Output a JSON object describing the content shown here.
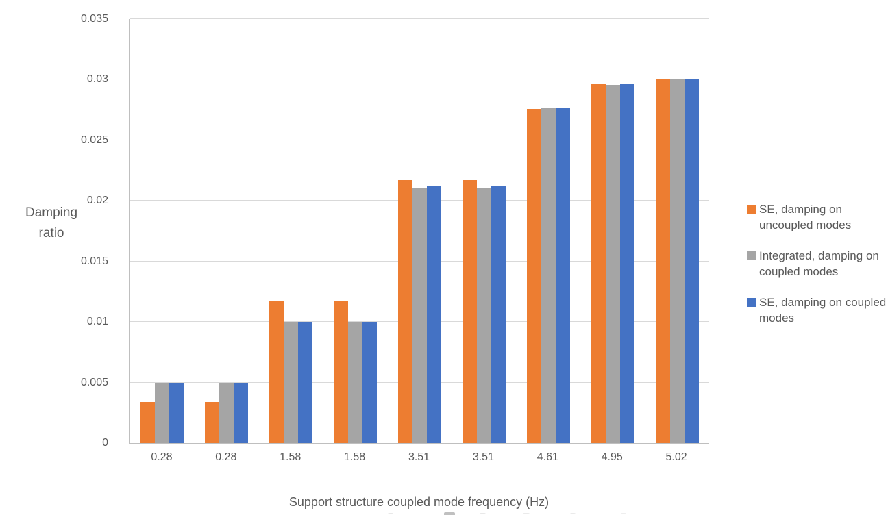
{
  "chart_data": {
    "type": "bar",
    "title": "",
    "xlabel": "Support structure coupled mode frequency (Hz)",
    "ylabel": "Damping ratio",
    "ylim": [
      0,
      0.035
    ],
    "ytick_labels": [
      "0",
      "0.005",
      "0.01",
      "0.015",
      "0.02",
      "0.025",
      "0.03",
      "0.035"
    ],
    "ytick_values": [
      0,
      0.005,
      0.01,
      0.015,
      0.02,
      0.025,
      0.03,
      0.035
    ],
    "categories": [
      "0.28",
      "0.28",
      "1.58",
      "1.58",
      "3.51",
      "3.51",
      "4.61",
      "4.95",
      "5.02"
    ],
    "series": [
      {
        "name": "SE, damping on uncoupled modes",
        "color": "#ED7D31",
        "values": [
          0.0034,
          0.0034,
          0.0117,
          0.0117,
          0.0217,
          0.0217,
          0.0276,
          0.0297,
          0.0301
        ]
      },
      {
        "name": "Integrated, damping on coupled modes",
        "color": "#A5A5A5",
        "values": [
          0.005,
          0.005,
          0.01,
          0.01,
          0.0211,
          0.0211,
          0.0277,
          0.0296,
          0.03
        ]
      },
      {
        "name": "SE, damping on coupled modes",
        "color": "#4472C4",
        "values": [
          0.005,
          0.005,
          0.01,
          0.01,
          0.0212,
          0.0212,
          0.0277,
          0.0297,
          0.0301
        ]
      }
    ],
    "legend_position": "right",
    "grid": true
  },
  "colors": {
    "text": "#595959",
    "gridline": "#D9D9D9",
    "axis_line": "#BFBFBF",
    "background": "#FFFFFF"
  }
}
